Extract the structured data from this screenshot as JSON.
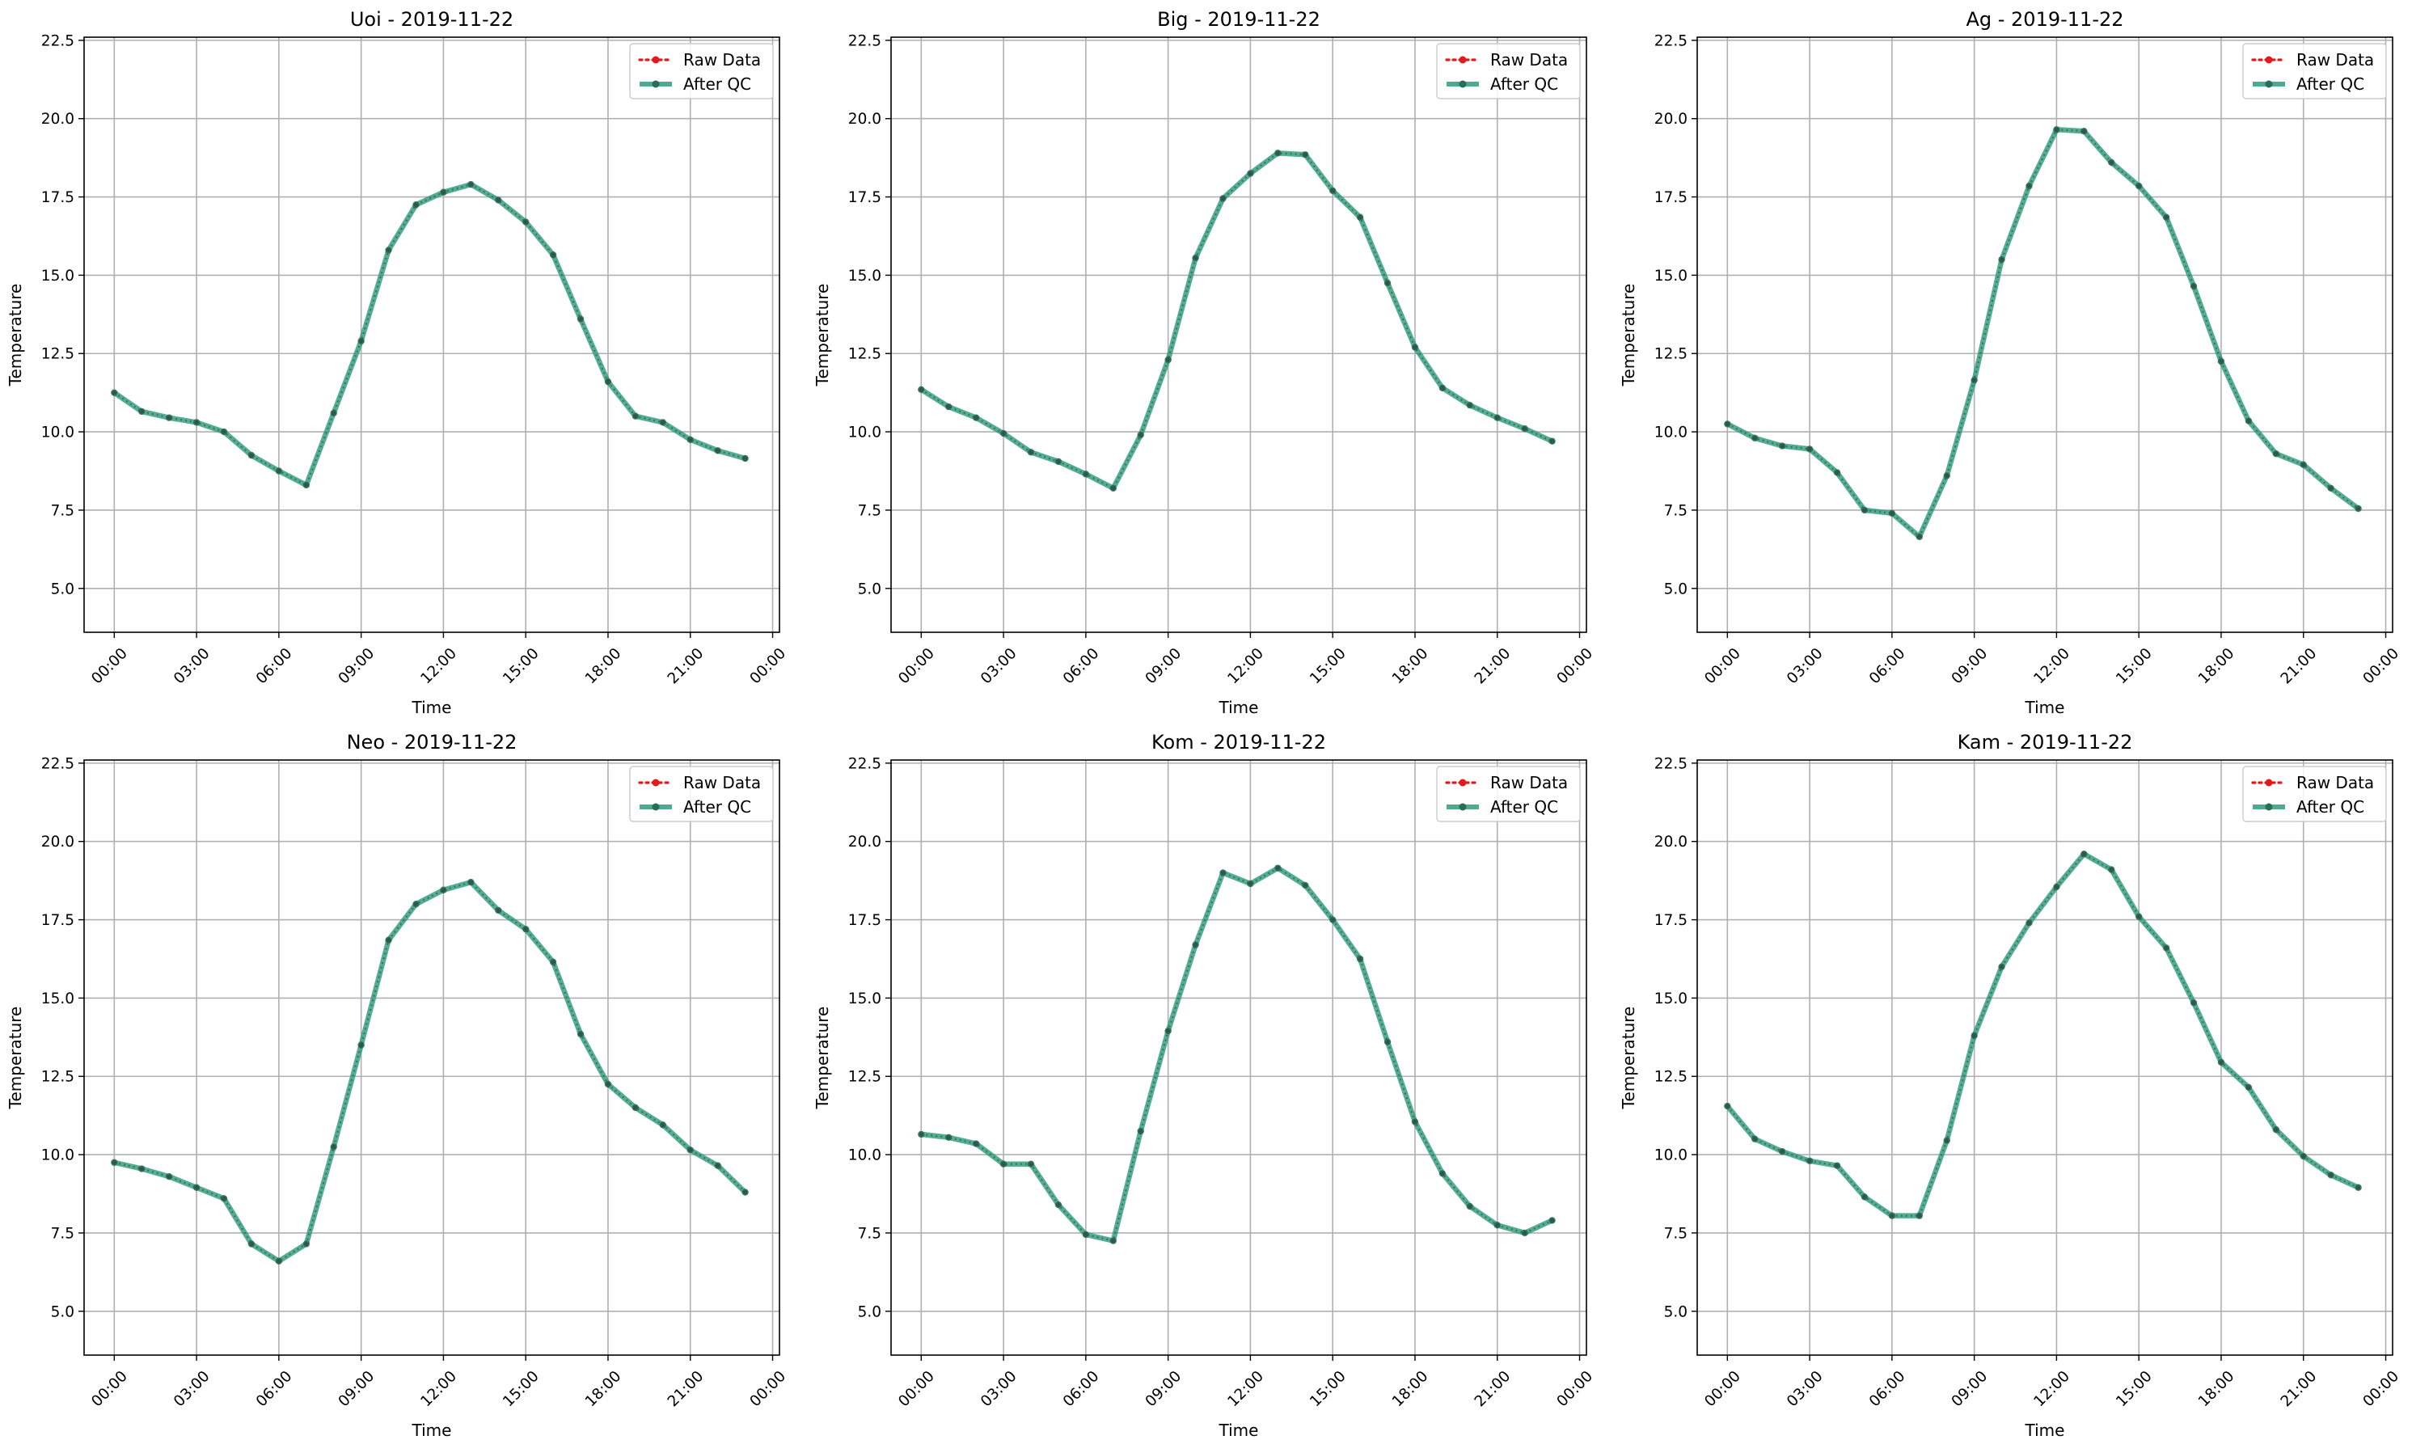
{
  "figure": {
    "ylabel": "Temperature",
    "xlabel": "Time",
    "x_ticks": [
      "00:00",
      "03:00",
      "06:00",
      "09:00",
      "12:00",
      "15:00",
      "18:00",
      "21:00",
      "00:00"
    ],
    "y_ticks": [
      "5.0",
      "7.5",
      "10.0",
      "12.5",
      "15.0",
      "17.5",
      "20.0",
      "22.5"
    ],
    "legend": [
      "Raw Data",
      "After QC"
    ],
    "colors": {
      "raw": "#e31a1c",
      "qc": "#2e9c7c",
      "qc_marker": "#2a6e58",
      "grid": "#b0b0b0"
    }
  },
  "chart_data": [
    {
      "type": "line",
      "title": "Uoi - 2019-11-22",
      "xlabel": "Time",
      "ylabel": "Temperature",
      "ylim": [
        3.6,
        22.6
      ],
      "x": [
        "00:00",
        "01:00",
        "02:00",
        "03:00",
        "04:00",
        "05:00",
        "06:00",
        "07:00",
        "08:00",
        "09:00",
        "10:00",
        "11:00",
        "12:00",
        "13:00",
        "14:00",
        "15:00",
        "16:00",
        "17:00",
        "18:00",
        "19:00",
        "20:00",
        "21:00",
        "22:00",
        "23:00"
      ],
      "series": [
        {
          "name": "Raw Data",
          "values": [
            11.25,
            10.65,
            10.45,
            10.3,
            10.0,
            9.25,
            8.75,
            8.3,
            10.6,
            12.9,
            15.8,
            17.25,
            17.65,
            17.9,
            17.4,
            16.7,
            15.65,
            13.6,
            11.6,
            10.5,
            10.3,
            9.75,
            9.4,
            9.15
          ]
        },
        {
          "name": "After QC",
          "values": [
            11.25,
            10.65,
            10.45,
            10.3,
            10.0,
            9.25,
            8.75,
            8.3,
            10.6,
            12.9,
            15.8,
            17.25,
            17.65,
            17.9,
            17.4,
            16.7,
            15.65,
            13.6,
            11.6,
            10.5,
            10.3,
            9.75,
            9.4,
            9.15
          ]
        }
      ]
    },
    {
      "type": "line",
      "title": "Big - 2019-11-22",
      "xlabel": "Time",
      "ylabel": "Temperature",
      "ylim": [
        3.6,
        22.6
      ],
      "x": [
        "00:00",
        "01:00",
        "02:00",
        "03:00",
        "04:00",
        "05:00",
        "06:00",
        "07:00",
        "08:00",
        "09:00",
        "10:00",
        "11:00",
        "12:00",
        "13:00",
        "14:00",
        "15:00",
        "16:00",
        "17:00",
        "18:00",
        "19:00",
        "20:00",
        "21:00",
        "22:00",
        "23:00"
      ],
      "series": [
        {
          "name": "Raw Data",
          "values": [
            11.35,
            10.8,
            10.45,
            9.95,
            9.35,
            9.05,
            8.65,
            8.2,
            9.9,
            12.3,
            15.55,
            17.45,
            18.25,
            18.9,
            18.85,
            17.7,
            16.85,
            14.75,
            12.7,
            11.4,
            10.85,
            10.45,
            10.1,
            9.7
          ]
        },
        {
          "name": "After QC",
          "values": [
            11.35,
            10.8,
            10.45,
            9.95,
            9.35,
            9.05,
            8.65,
            8.2,
            9.9,
            12.3,
            15.55,
            17.45,
            18.25,
            18.9,
            18.85,
            17.7,
            16.85,
            14.75,
            12.7,
            11.4,
            10.85,
            10.45,
            10.1,
            9.7
          ]
        }
      ]
    },
    {
      "type": "line",
      "title": "Ag - 2019-11-22",
      "xlabel": "Time",
      "ylabel": "Temperature",
      "ylim": [
        3.6,
        22.6
      ],
      "x": [
        "00:00",
        "01:00",
        "02:00",
        "03:00",
        "04:00",
        "05:00",
        "06:00",
        "07:00",
        "08:00",
        "09:00",
        "10:00",
        "11:00",
        "12:00",
        "13:00",
        "14:00",
        "15:00",
        "16:00",
        "17:00",
        "18:00",
        "19:00",
        "20:00",
        "21:00",
        "22:00",
        "23:00"
      ],
      "series": [
        {
          "name": "Raw Data",
          "values": [
            10.25,
            9.8,
            9.55,
            9.45,
            8.7,
            7.5,
            7.4,
            6.65,
            8.6,
            11.65,
            15.5,
            17.85,
            19.65,
            19.6,
            18.6,
            17.85,
            16.85,
            14.65,
            12.25,
            10.35,
            9.3,
            8.95,
            8.2,
            7.55
          ]
        },
        {
          "name": "After QC",
          "values": [
            10.25,
            9.8,
            9.55,
            9.45,
            8.7,
            7.5,
            7.4,
            6.65,
            8.6,
            11.65,
            15.5,
            17.85,
            19.65,
            19.6,
            18.6,
            17.85,
            16.85,
            14.65,
            12.25,
            10.35,
            9.3,
            8.95,
            8.2,
            7.55
          ]
        }
      ]
    },
    {
      "type": "line",
      "title": "Neo - 2019-11-22",
      "xlabel": "Time",
      "ylabel": "Temperature",
      "ylim": [
        3.6,
        22.6
      ],
      "x": [
        "00:00",
        "01:00",
        "02:00",
        "03:00",
        "04:00",
        "05:00",
        "06:00",
        "07:00",
        "08:00",
        "09:00",
        "10:00",
        "11:00",
        "12:00",
        "13:00",
        "14:00",
        "15:00",
        "16:00",
        "17:00",
        "18:00",
        "19:00",
        "20:00",
        "21:00",
        "22:00",
        "23:00"
      ],
      "series": [
        {
          "name": "Raw Data",
          "values": [
            9.75,
            9.55,
            9.3,
            8.95,
            8.6,
            7.15,
            6.6,
            7.15,
            10.25,
            13.5,
            16.85,
            18.0,
            18.45,
            18.7,
            17.8,
            17.2,
            16.15,
            13.85,
            12.25,
            11.5,
            10.95,
            10.15,
            9.65,
            8.8
          ]
        },
        {
          "name": "After QC",
          "values": [
            9.75,
            9.55,
            9.3,
            8.95,
            8.6,
            7.15,
            6.6,
            7.15,
            10.25,
            13.5,
            16.85,
            18.0,
            18.45,
            18.7,
            17.8,
            17.2,
            16.15,
            13.85,
            12.25,
            11.5,
            10.95,
            10.15,
            9.65,
            8.8
          ]
        }
      ]
    },
    {
      "type": "line",
      "title": "Kom - 2019-11-22",
      "xlabel": "Time",
      "ylabel": "Temperature",
      "ylim": [
        3.6,
        22.6
      ],
      "x": [
        "00:00",
        "01:00",
        "02:00",
        "03:00",
        "04:00",
        "05:00",
        "06:00",
        "07:00",
        "08:00",
        "09:00",
        "10:00",
        "11:00",
        "12:00",
        "13:00",
        "14:00",
        "15:00",
        "16:00",
        "17:00",
        "18:00",
        "19:00",
        "20:00",
        "21:00",
        "22:00",
        "23:00"
      ],
      "series": [
        {
          "name": "Raw Data",
          "values": [
            10.65,
            10.55,
            10.35,
            9.7,
            9.7,
            8.4,
            7.45,
            7.25,
            10.75,
            13.95,
            16.7,
            19.0,
            18.65,
            19.15,
            18.6,
            17.5,
            16.25,
            13.6,
            11.05,
            9.4,
            8.35,
            7.75,
            7.5,
            7.9
          ]
        },
        {
          "name": "After QC",
          "values": [
            10.65,
            10.55,
            10.35,
            9.7,
            9.7,
            8.4,
            7.45,
            7.25,
            10.75,
            13.95,
            16.7,
            19.0,
            18.65,
            19.15,
            18.6,
            17.5,
            16.25,
            13.6,
            11.05,
            9.4,
            8.35,
            7.75,
            7.5,
            7.9
          ]
        }
      ]
    },
    {
      "type": "line",
      "title": "Kam - 2019-11-22",
      "xlabel": "Time",
      "ylabel": "Temperature",
      "ylim": [
        3.6,
        22.6
      ],
      "x": [
        "00:00",
        "01:00",
        "02:00",
        "03:00",
        "04:00",
        "05:00",
        "06:00",
        "07:00",
        "08:00",
        "09:00",
        "10:00",
        "11:00",
        "12:00",
        "13:00",
        "14:00",
        "15:00",
        "16:00",
        "17:00",
        "18:00",
        "19:00",
        "20:00",
        "21:00",
        "22:00",
        "23:00"
      ],
      "series": [
        {
          "name": "Raw Data",
          "values": [
            11.55,
            10.5,
            10.1,
            9.8,
            9.65,
            8.65,
            8.05,
            8.05,
            10.45,
            13.8,
            16.0,
            17.4,
            18.55,
            19.6,
            19.1,
            17.6,
            16.6,
            14.85,
            12.95,
            12.15,
            10.8,
            9.95,
            9.35,
            8.95
          ]
        },
        {
          "name": "After QC",
          "values": [
            11.55,
            10.5,
            10.1,
            9.8,
            9.65,
            8.65,
            8.05,
            8.05,
            10.45,
            13.8,
            16.0,
            17.4,
            18.55,
            19.6,
            19.1,
            17.6,
            16.6,
            14.85,
            12.95,
            12.15,
            10.8,
            9.95,
            9.35,
            8.95
          ]
        }
      ]
    }
  ]
}
